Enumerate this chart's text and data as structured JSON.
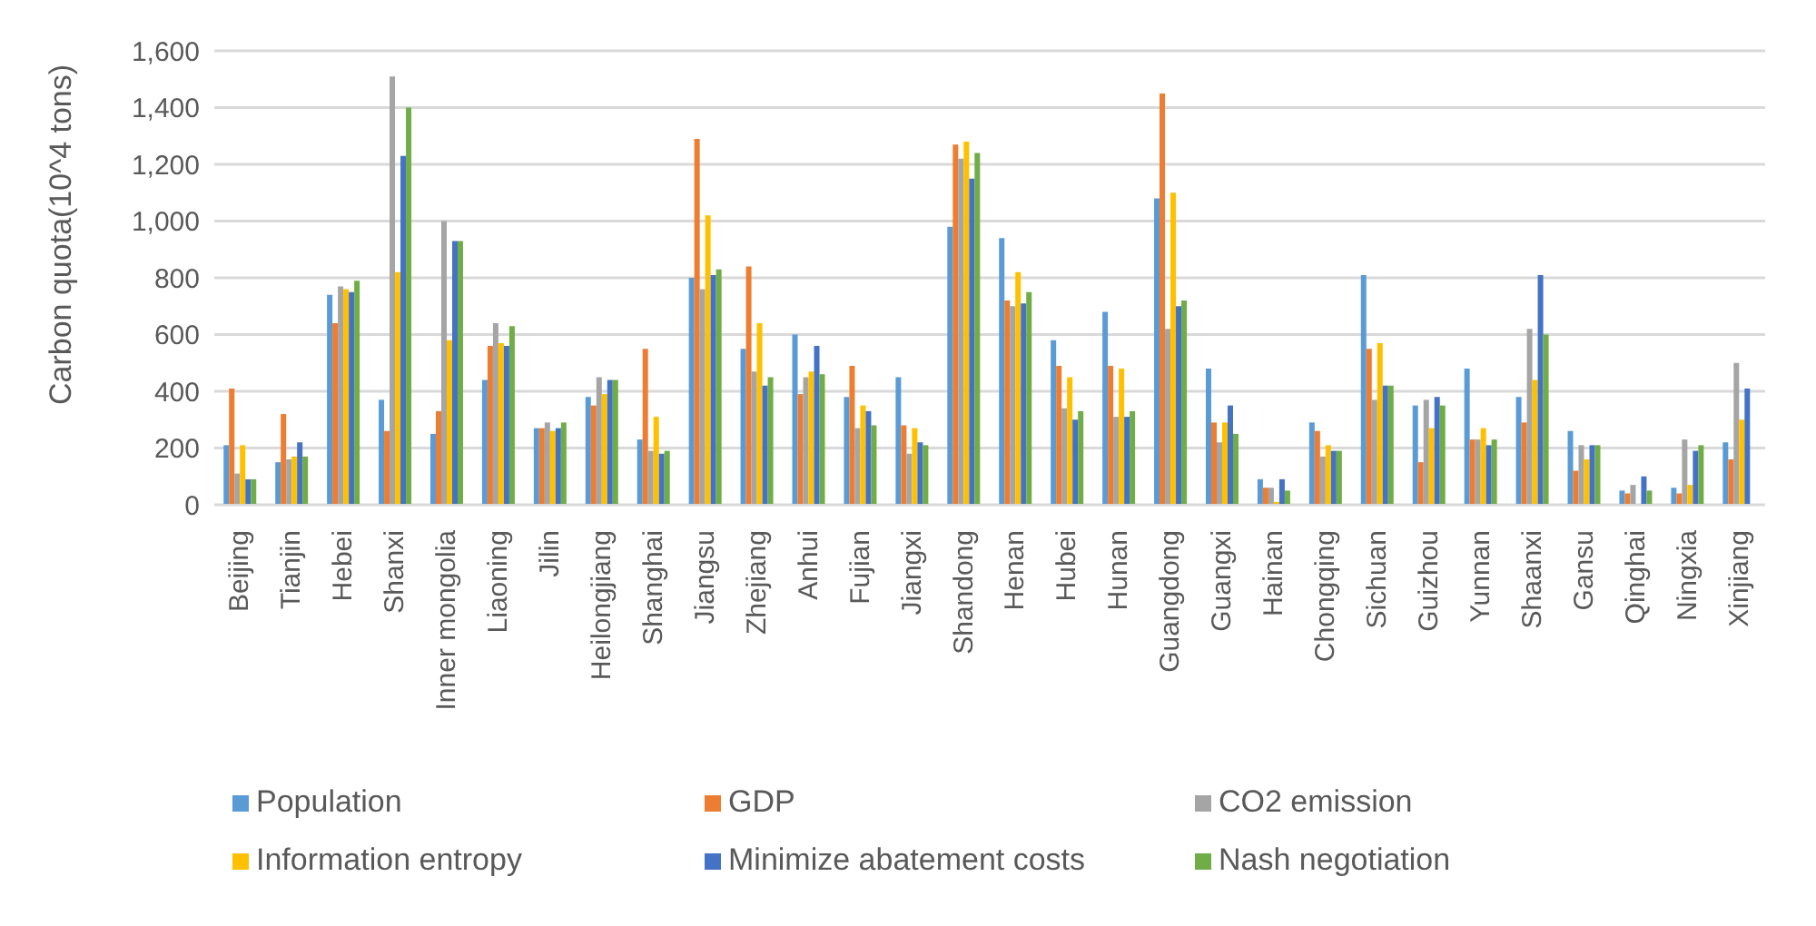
{
  "chart_data": {
    "type": "bar",
    "ylabel": "Carbon quota(10^4 tons)",
    "categories": [
      "Beijing",
      "Tianjin",
      "Hebei",
      "Shanxi",
      "Inner mongolia",
      "Liaoning",
      "Jilin",
      "Heilongjiang",
      "Shanghai",
      "Jiangsu",
      "Zhejiang",
      "Anhui",
      "Fujian",
      "Jiangxi",
      "Shandong",
      "Henan",
      "Hubei",
      "Hunan",
      "Guangdong",
      "Guangxi",
      "Hainan",
      "Chongqing",
      "Sichuan",
      "Guizhou",
      "Yunnan",
      "Shaanxi",
      "Gansu",
      "Qinghai",
      "Ningxia",
      "Xinjiang"
    ],
    "series": [
      {
        "name": "Population",
        "color": "#5b9bd5",
        "values": [
          210,
          150,
          740,
          370,
          250,
          440,
          270,
          380,
          230,
          800,
          550,
          600,
          380,
          450,
          980,
          940,
          580,
          680,
          1080,
          480,
          90,
          290,
          810,
          350,
          480,
          380,
          260,
          50,
          60,
          220
        ]
      },
      {
        "name": "GDP",
        "color": "#ed7d31",
        "values": [
          410,
          320,
          640,
          260,
          330,
          560,
          270,
          350,
          550,
          1290,
          840,
          390,
          490,
          280,
          1270,
          720,
          490,
          490,
          1450,
          290,
          60,
          260,
          550,
          150,
          230,
          290,
          120,
          40,
          40,
          160
        ]
      },
      {
        "name": "CO2 emission",
        "color": "#a5a5a5",
        "values": [
          110,
          160,
          770,
          1510,
          1000,
          640,
          290,
          450,
          190,
          760,
          470,
          450,
          270,
          180,
          1220,
          700,
          340,
          310,
          620,
          220,
          60,
          170,
          370,
          370,
          230,
          620,
          210,
          70,
          230,
          500
        ]
      },
      {
        "name": "Information entropy",
        "color": "#ffc000",
        "values": [
          210,
          170,
          760,
          820,
          580,
          570,
          260,
          390,
          310,
          1020,
          640,
          470,
          350,
          270,
          1280,
          820,
          450,
          480,
          1100,
          290,
          10,
          210,
          570,
          270,
          270,
          440,
          160,
          0,
          70,
          300
        ]
      },
      {
        "name": "Minimize abatement costs",
        "color": "#4472c4",
        "values": [
          90,
          220,
          750,
          1230,
          930,
          560,
          270,
          440,
          180,
          810,
          420,
          560,
          330,
          220,
          1150,
          710,
          300,
          310,
          700,
          350,
          90,
          190,
          420,
          380,
          210,
          810,
          210,
          100,
          190,
          410
        ]
      },
      {
        "name": "Nash negotiation",
        "color": "#70ad47",
        "values": [
          90,
          170,
          790,
          1400,
          930,
          630,
          290,
          440,
          190,
          830,
          450,
          460,
          280,
          210,
          1240,
          750,
          330,
          330,
          720,
          250,
          50,
          190,
          420,
          350,
          230,
          600,
          210,
          50,
          210,
          null
        ]
      }
    ],
    "ylim": [
      0,
      1600
    ],
    "yticks": [
      0,
      200,
      400,
      600,
      800,
      {
        "value": 1000,
        "label": "1,000"
      },
      {
        "value": 1200,
        "label": "1,200"
      },
      {
        "value": 1400,
        "label": "1,400"
      },
      {
        "value": 1600,
        "label": "1,600"
      }
    ],
    "grid": "y",
    "legend": "bottom"
  }
}
